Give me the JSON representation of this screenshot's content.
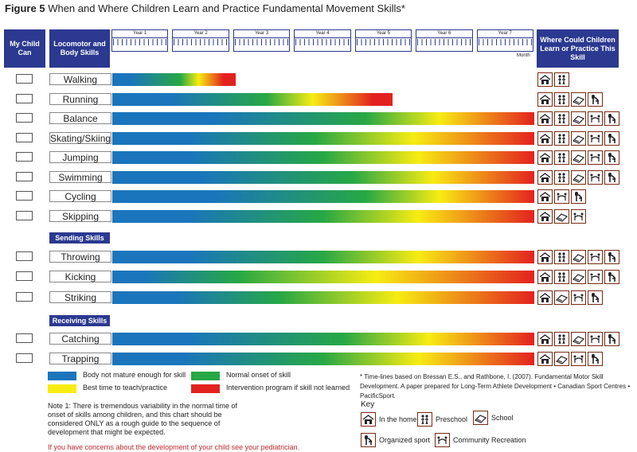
{
  "title": {
    "figure": "Figure 5",
    "text": "When and Where Children Learn and Practice Fundamental Movement Skills*"
  },
  "headers": {
    "my_child": "My Child Can",
    "skills": "Locomotor and Body Skills",
    "where": "Where Could Children Learn or Practice This Skill",
    "month": "Month"
  },
  "years": [
    "Year 1",
    "Year 2",
    "Year 3",
    "Year 4",
    "Year 5",
    "Year 6",
    "Year 7"
  ],
  "colors": {
    "blue": "#1a75bc",
    "green": "#27a844",
    "yellow": "#f7ec12",
    "red": "#e3221f"
  },
  "chart_data": {
    "type": "bar",
    "title": "When and Where Children Learn and Practice Fundamental Movement Skills*",
    "x_unit": "years of age",
    "xlim": [
      0,
      7
    ],
    "phases": [
      "Body not mature enough for skill",
      "Normal onset of skill",
      "Best time to teach/practice",
      "Intervention program if skill not learned"
    ],
    "sections": [
      {
        "name": "Locomotor and Body Skills",
        "skills": [
          {
            "label": "Walking",
            "end": 2.05,
            "stops": [
              0.25,
              0.55,
              0.85
            ],
            "icons": [
              "home",
              "preschool"
            ]
          },
          {
            "label": "Running",
            "end": 4.65,
            "stops": [
              0.35,
              0.55,
              0.88
            ],
            "icons": [
              "home",
              "preschool",
              "school",
              "sport"
            ]
          },
          {
            "label": "Balance",
            "end": 7.0,
            "stops": [
              0.4,
              0.6,
              0.95
            ],
            "icons": [
              "home",
              "preschool",
              "school",
              "community",
              "sport"
            ]
          },
          {
            "label": "Skating/Skiing",
            "end": 7.0,
            "stops": [
              0.3,
              0.48,
              0.95
            ],
            "icons": [
              "home",
              "preschool",
              "school",
              "community",
              "sport"
            ]
          },
          {
            "label": "Jumping",
            "end": 7.0,
            "stops": [
              0.3,
              0.5,
              0.95
            ],
            "icons": [
              "home",
              "preschool",
              "school",
              "community",
              "sport"
            ]
          },
          {
            "label": "Swimming",
            "end": 7.0,
            "stops": [
              0.35,
              0.57,
              0.95
            ],
            "icons": [
              "home",
              "preschool",
              "school",
              "community",
              "sport"
            ]
          },
          {
            "label": "Cycling",
            "end": 7.0,
            "stops": [
              0.4,
              0.6,
              0.95
            ],
            "icons": [
              "home",
              "community",
              "sport"
            ]
          },
          {
            "label": "Skipping",
            "end": 7.0,
            "stops": [
              0.3,
              0.5,
              0.95
            ],
            "icons": [
              "home",
              "school",
              "community"
            ]
          }
        ]
      },
      {
        "name": "Sending Skills",
        "skills": [
          {
            "label": "Throwing",
            "end": 7.0,
            "stops": [
              0.3,
              0.5,
              0.95
            ],
            "icons": [
              "home",
              "preschool",
              "school",
              "community",
              "sport"
            ]
          },
          {
            "label": "Kicking",
            "end": 7.0,
            "stops": [
              0.12,
              0.3,
              0.95
            ],
            "icons": [
              "home",
              "preschool",
              "school",
              "community",
              "sport"
            ]
          },
          {
            "label": "Striking",
            "end": 7.0,
            "stops": [
              0.25,
              0.4,
              0.95
            ],
            "icons": [
              "home",
              "school",
              "community",
              "sport"
            ]
          }
        ]
      },
      {
        "name": "Receiving Skills",
        "skills": [
          {
            "label": "Catching",
            "end": 7.0,
            "stops": [
              0.3,
              0.55,
              0.95
            ],
            "icons": [
              "home",
              "preschool",
              "school",
              "community",
              "sport"
            ]
          },
          {
            "label": "Trapping",
            "end": 7.0,
            "stops": [
              0.28,
              0.5,
              0.95
            ],
            "icons": [
              "home",
              "school",
              "community",
              "sport"
            ]
          }
        ]
      }
    ]
  },
  "legend": [
    {
      "label": "Body not mature enough for skill",
      "color": "#1a75bc"
    },
    {
      "label": "Normal onset of skill",
      "color": "#27a844"
    },
    {
      "label": "Best time to teach/practice",
      "color": "#f7ec12"
    },
    {
      "label": "Intervention program if skill not learned",
      "color": "#e3221f"
    }
  ],
  "footnote": "* Time-lines based on Bressan E.S., and Rathbone, I. (2007). Fundamental Motor Skill Development. A paper prepared for Long-Term Athlete Development • Canadian Sport Centres • PacificSport.",
  "note": "Note 1: There is tremendous variability in the normal time of onset of skills among children, and this chart should be considered ONLY as a rough guide to the sequence of development that might be expected.",
  "warning": "If you have concerns about the development of your child see your pediatrician.",
  "key": {
    "title": "Key",
    "items": [
      {
        "icon": "home",
        "label": "In the home"
      },
      {
        "icon": "preschool",
        "label": "Preschool"
      },
      {
        "icon": "school",
        "label": "School"
      },
      {
        "icon": "sport",
        "label": "Organized sport"
      },
      {
        "icon": "community",
        "label": "Community Recreation"
      }
    ]
  }
}
